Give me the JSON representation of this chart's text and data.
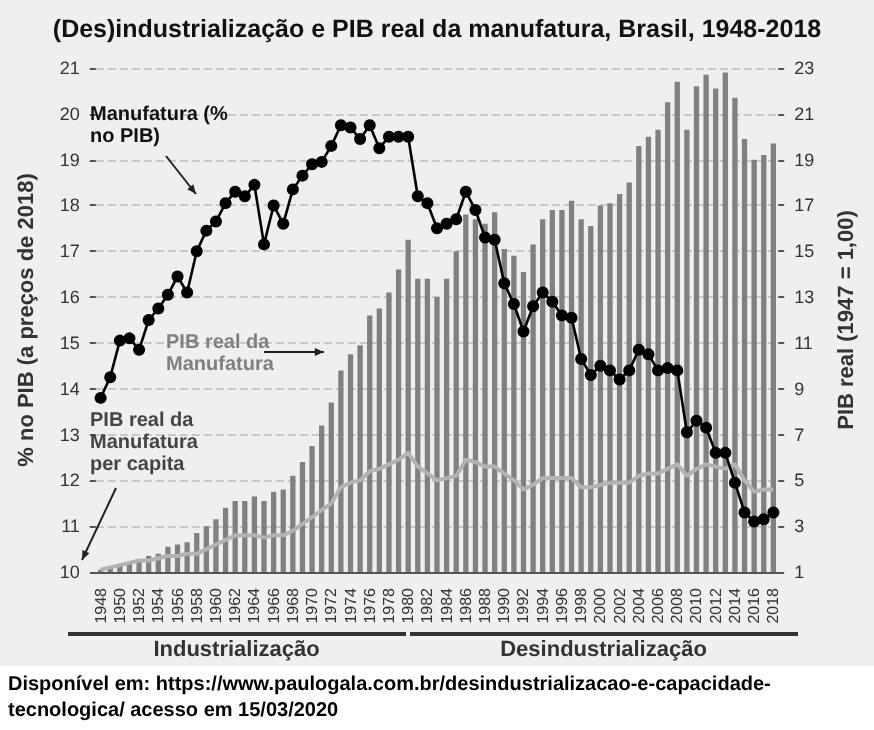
{
  "chart_data": {
    "type": "bar",
    "title": "(Des)industrialização e PIB real da manufatura, Brasil, 1948-2018",
    "ylabel": "% no PIB (a preços de 2018)",
    "y2label": "PIB real (1947 = 1,00)",
    "categories": [
      "1948",
      null,
      "1950",
      null,
      "1952",
      null,
      "1954",
      null,
      "1956",
      null,
      "1958",
      null,
      "1960",
      null,
      "1962",
      null,
      "1964",
      null,
      "1966",
      null,
      "1968",
      null,
      "1970",
      null,
      "1972",
      null,
      "1974",
      null,
      "1976",
      null,
      "1978",
      null,
      "1980",
      null,
      "1982",
      null,
      "1984",
      null,
      "1986",
      null,
      "1988",
      null,
      "1990",
      null,
      "1992",
      null,
      "1994",
      null,
      "1996",
      null,
      "1998",
      null,
      "2000",
      null,
      "2002",
      null,
      "2004",
      null,
      "2006",
      null,
      "2008",
      null,
      "2010",
      null,
      "2012",
      null,
      "2014",
      null,
      "2016",
      null,
      "2018"
    ],
    "series": [
      {
        "name": "PIB real da Manufatura",
        "axis": "y2",
        "color": "#808080",
        "values": [
          1.1,
          1.2,
          1.3,
          1.4,
          1.5,
          1.7,
          1.8,
          2.1,
          2.2,
          2.3,
          2.7,
          3.0,
          3.3,
          3.8,
          4.1,
          4.1,
          4.3,
          4.1,
          4.5,
          4.6,
          5.2,
          5.8,
          6.5,
          7.4,
          8.4,
          9.8,
          10.5,
          10.9,
          12.2,
          12.5,
          13.2,
          14.2,
          15.5,
          13.8,
          13.8,
          13.0,
          13.8,
          15.0,
          16.6,
          16.4,
          16.2,
          16.7,
          15.1,
          14.8,
          14.1,
          15.3,
          16.4,
          16.8,
          16.8,
          17.2,
          16.4,
          16.1,
          17.0,
          17.1,
          17.5,
          18.0,
          19.6,
          20.0,
          20.3,
          21.5,
          22.4,
          20.3,
          22.2,
          22.7,
          22.1,
          22.8,
          21.7,
          19.9,
          19.0,
          19.2,
          19.7
        ]
      },
      {
        "name": "PIB real da Manufatura per capita",
        "type": "line",
        "axis": "y2",
        "color": "#b3b3b3",
        "marker": "none",
        "values": [
          1.1,
          1.2,
          1.3,
          1.4,
          1.5,
          1.5,
          1.6,
          1.7,
          1.7,
          1.8,
          1.8,
          2.0,
          2.2,
          2.4,
          2.6,
          2.6,
          2.6,
          2.5,
          2.6,
          2.6,
          2.8,
          3.1,
          3.4,
          3.7,
          4.0,
          4.7,
          4.9,
          5.0,
          5.4,
          5.5,
          5.7,
          5.9,
          6.2,
          5.6,
          5.3,
          5.0,
          5.1,
          5.2,
          5.9,
          5.8,
          5.6,
          5.6,
          5.3,
          5.0,
          4.6,
          4.8,
          5.1,
          5.1,
          5.1,
          5.1,
          4.7,
          4.7,
          4.8,
          4.9,
          4.9,
          4.9,
          5.2,
          5.3,
          5.3,
          5.5,
          5.7,
          5.2,
          5.5,
          5.7,
          5.6,
          5.5,
          5.7,
          5.0,
          4.5,
          4.6,
          4.6
        ]
      },
      {
        "name": "Manufatura (% no PIB)",
        "type": "line",
        "color": "#000000",
        "marker": "circle",
        "values": [
          13.8,
          14.25,
          15.05,
          15.1,
          14.85,
          15.5,
          15.75,
          16.05,
          16.45,
          16.1,
          17.0,
          17.45,
          17.65,
          18.05,
          18.3,
          18.2,
          18.45,
          17.15,
          18.0,
          17.6,
          18.35,
          18.65,
          18.9,
          18.95,
          19.3,
          19.75,
          19.7,
          19.45,
          19.75,
          19.25,
          19.5,
          19.5,
          19.5,
          18.2,
          18.05,
          17.5,
          17.6,
          17.7,
          18.3,
          17.9,
          17.3,
          17.25,
          16.3,
          15.85,
          15.25,
          15.8,
          16.1,
          15.9,
          15.6,
          15.55,
          14.65,
          14.3,
          14.5,
          14.4,
          14.2,
          14.4,
          14.85,
          14.75,
          14.4,
          14.45,
          14.4,
          13.05,
          13.3,
          13.15,
          12.6,
          12.6,
          11.95,
          11.3,
          11.1,
          11.15,
          11.3
        ]
      }
    ],
    "ylim": [
      10,
      21
    ],
    "yticks": [
      10,
      11,
      12,
      13,
      14,
      15,
      16,
      17,
      18,
      19,
      20,
      21
    ],
    "y2lim": [
      1,
      23
    ],
    "y2ticks": [
      1,
      3,
      5,
      7,
      9,
      11,
      13,
      15,
      17,
      19,
      21,
      23
    ],
    "grid": "y",
    "annotations": [
      "Industrialização",
      "Desindustrialização",
      "Disponível em: https://www.paulogala.com.br/desindustrializacao-e-capacidade-tecnologica/ acesso em 15/03/2020"
    ]
  }
}
